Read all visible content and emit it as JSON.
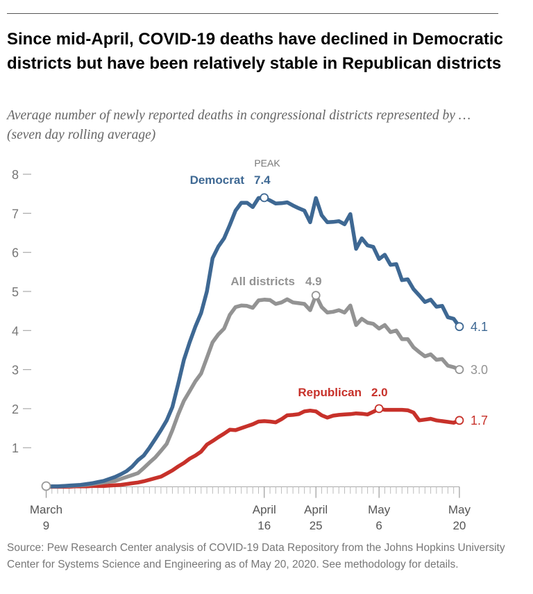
{
  "title": "Since mid-April, COVID-19 deaths have declined in Democratic districts but have been relatively stable in Republican districts",
  "subtitle": "Average number of newly reported deaths in congressional districts represented by … (seven day rolling average)",
  "source": "Source: Pew Research Center analysis of COVID-19 Data Repository from the Johns Hopkins University Center for Systems Science and Engineering as of May 20, 2020. See methodology for details.",
  "colors": {
    "democrat": "#3e6893",
    "all": "#939393",
    "republican": "#c7312a",
    "axis": "#888888"
  },
  "chart_data": {
    "type": "line",
    "x_start": "2020-03-09",
    "x_end": "2020-05-20",
    "x_step": "1 day",
    "xlim": [
      "2020-03-09",
      "2020-05-20"
    ],
    "ylim": [
      0,
      8
    ],
    "yticks": [
      "1",
      "2",
      "3",
      "4",
      "5",
      "6",
      "7",
      "8"
    ],
    "ytick_values": [
      1,
      2,
      3,
      4,
      5,
      6,
      7,
      8
    ],
    "xticks": [
      {
        "date": "2020-03-09",
        "line1": "March",
        "line2": "9"
      },
      {
        "date": "2020-04-16",
        "line1": "April",
        "line2": "16"
      },
      {
        "date": "2020-04-25",
        "line1": "April",
        "line2": "25"
      },
      {
        "date": "2020-05-06",
        "line1": "May",
        "line2": "6"
      },
      {
        "date": "2020-05-20",
        "line1": "May",
        "line2": "20"
      }
    ],
    "grid": false,
    "series": [
      {
        "name": "Democrat",
        "key": "democrat",
        "values": [
          0.0,
          0.01,
          0.01,
          0.02,
          0.03,
          0.04,
          0.05,
          0.07,
          0.09,
          0.12,
          0.15,
          0.2,
          0.25,
          0.32,
          0.4,
          0.52,
          0.68,
          0.8,
          1.0,
          1.22,
          1.45,
          1.7,
          2.04,
          2.63,
          3.25,
          3.7,
          4.1,
          4.45,
          5.0,
          5.85,
          6.15,
          6.36,
          6.7,
          7.07,
          7.27,
          7.27,
          7.16,
          7.39,
          7.4,
          7.33,
          7.25,
          7.26,
          7.28,
          7.2,
          7.13,
          7.07,
          6.77,
          7.39,
          6.95,
          6.77,
          6.78,
          6.8,
          6.72,
          6.98,
          6.09,
          6.36,
          6.18,
          6.14,
          5.83,
          5.94,
          5.68,
          5.7,
          5.29,
          5.31,
          5.06,
          4.9,
          4.73,
          4.79,
          4.61,
          4.63,
          4.34,
          4.3,
          4.1
        ]
      },
      {
        "name": "All districts",
        "key": "all",
        "values": [
          0.0,
          0.01,
          0.01,
          0.02,
          0.02,
          0.03,
          0.04,
          0.05,
          0.07,
          0.09,
          0.11,
          0.13,
          0.15,
          0.2,
          0.25,
          0.3,
          0.35,
          0.48,
          0.62,
          0.75,
          0.92,
          1.1,
          1.45,
          1.85,
          2.2,
          2.45,
          2.7,
          2.9,
          3.3,
          3.7,
          3.9,
          4.05,
          4.4,
          4.6,
          4.64,
          4.63,
          4.58,
          4.77,
          4.79,
          4.78,
          4.68,
          4.72,
          4.8,
          4.72,
          4.7,
          4.68,
          4.52,
          4.9,
          4.6,
          4.46,
          4.48,
          4.52,
          4.46,
          4.64,
          4.14,
          4.3,
          4.2,
          4.17,
          4.05,
          4.14,
          3.96,
          4.0,
          3.78,
          3.78,
          3.57,
          3.45,
          3.34,
          3.39,
          3.25,
          3.27,
          3.1,
          3.06,
          3.0
        ]
      },
      {
        "name": "Republican",
        "key": "republican",
        "values": [
          0,
          0,
          0,
          0,
          0,
          0.01,
          0.01,
          0.01,
          0.02,
          0.02,
          0.02,
          0.03,
          0.04,
          0.05,
          0.07,
          0.09,
          0.11,
          0.14,
          0.18,
          0.22,
          0.26,
          0.34,
          0.42,
          0.52,
          0.61,
          0.72,
          0.8,
          0.9,
          1.08,
          1.17,
          1.27,
          1.36,
          1.46,
          1.45,
          1.5,
          1.55,
          1.6,
          1.67,
          1.68,
          1.67,
          1.65,
          1.73,
          1.83,
          1.84,
          1.86,
          1.93,
          1.95,
          1.93,
          1.83,
          1.77,
          1.82,
          1.84,
          1.85,
          1.86,
          1.88,
          1.87,
          1.85,
          1.92,
          2.0,
          1.97,
          1.97,
          1.97,
          1.97,
          1.96,
          1.9,
          1.7,
          1.72,
          1.74,
          1.7,
          1.68,
          1.66,
          1.64,
          1.7
        ]
      }
    ],
    "annotations": {
      "peak_label": "PEAK",
      "democrat": {
        "label": "Democrat",
        "value": "7.4",
        "date": "2020-04-16",
        "end": "4.1"
      },
      "all": {
        "label": "All districts",
        "value": "4.9",
        "date": "2020-04-25",
        "end": "3.0"
      },
      "republican": {
        "label": "Republican",
        "value": "2.0",
        "date": "2020-05-06",
        "end": "1.7"
      }
    }
  }
}
